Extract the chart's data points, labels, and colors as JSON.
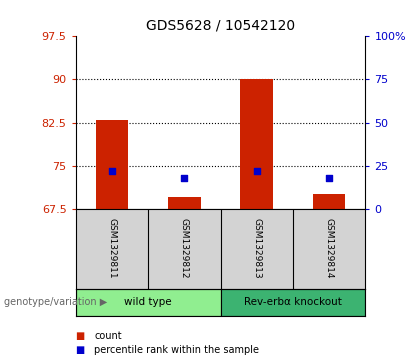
{
  "title": "GDS5628 / 10542120",
  "samples": [
    "GSM1329811",
    "GSM1329812",
    "GSM1329813",
    "GSM1329814"
  ],
  "bar_values": [
    83.0,
    69.5,
    90.0,
    70.0
  ],
  "percentile_values": [
    74.0,
    72.8,
    74.0,
    72.8
  ],
  "ylim_left": [
    67.5,
    97.5
  ],
  "ylim_right": [
    0,
    100
  ],
  "yticks_left": [
    67.5,
    75.0,
    82.5,
    90.0,
    97.5
  ],
  "ytick_labels_left": [
    "67.5",
    "75",
    "82.5",
    "90",
    "97.5"
  ],
  "yticks_right": [
    0,
    25,
    50,
    75,
    100
  ],
  "ytick_labels_right": [
    "0",
    "25",
    "50",
    "75",
    "100%"
  ],
  "hlines": [
    75.0,
    82.5,
    90.0
  ],
  "groups": [
    {
      "label": "wild type",
      "samples": [
        0,
        1
      ],
      "color": "#90ee90"
    },
    {
      "label": "Rev-erbα knockout",
      "samples": [
        2,
        3
      ],
      "color": "#3cb371"
    }
  ],
  "bar_color": "#cc2200",
  "percentile_color": "#0000cc",
  "bar_width": 0.45,
  "title_fontsize": 10,
  "axis_label_color_left": "#cc2200",
  "axis_label_color_right": "#0000cc",
  "group_label": "genotype/variation",
  "legend_count_label": "count",
  "legend_percentile_label": "percentile rank within the sample",
  "background_plot": "#ffffff",
  "background_sample_row": "#d3d3d3"
}
